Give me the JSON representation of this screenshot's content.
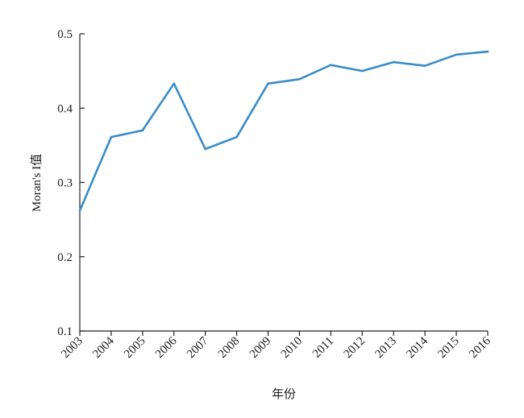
{
  "chart_data": {
    "type": "line",
    "title": "",
    "xlabel": "年份",
    "ylabel": "Moran's I值",
    "ylim": [
      0.1,
      0.5
    ],
    "yticks": [
      "0.1",
      "0.2",
      "0.3",
      "0.4",
      "0.5"
    ],
    "grid": false,
    "x": [
      "2003",
      "2004",
      "2005",
      "2006",
      "2007",
      "2008",
      "2009",
      "2010",
      "2011",
      "2012",
      "2013",
      "2014",
      "2015",
      "2016"
    ],
    "series": [
      {
        "values": [
          0.262,
          0.361,
          0.37,
          0.433,
          0.345,
          0.361,
          0.433,
          0.439,
          0.458,
          0.45,
          0.462,
          0.457,
          0.472,
          0.476
        ],
        "color": "#3a8cc8"
      }
    ]
  }
}
